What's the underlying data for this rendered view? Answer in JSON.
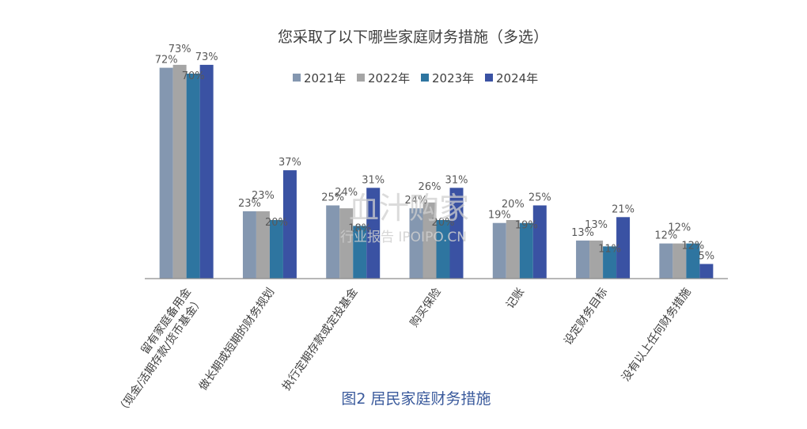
{
  "chart_data": {
    "type": "bar",
    "title": "您采取了以下哪些家庭财务措施（多选）",
    "categories": [
      [
        "留有家庭备用金",
        "（现金/活期存款/货币基金）"
      ],
      [
        "做长期或短期的财务规划"
      ],
      [
        "执行定期存款或定投基金"
      ],
      [
        "购买保险"
      ],
      [
        "记账"
      ],
      [
        "设定财务目标"
      ],
      [
        "没有以上任何财务措施"
      ]
    ],
    "series": [
      {
        "name": "2021年",
        "color": "#8497b0",
        "values": [
          72,
          23,
          25,
          24,
          19,
          13,
          12
        ]
      },
      {
        "name": "2022年",
        "color": "#a5a5a5",
        "values": [
          73,
          23,
          24,
          26,
          20,
          13,
          12
        ]
      },
      {
        "name": "2023年",
        "color": "#2e75a0",
        "values": [
          70,
          20,
          18,
          20,
          19,
          11,
          12
        ]
      },
      {
        "name": "2024年",
        "color": "#3a52a3",
        "values": [
          73,
          37,
          31,
          31,
          25,
          21,
          5
        ]
      }
    ],
    "value_suffix": "%",
    "ylim": [
      0,
      80
    ],
    "legend_position": "top-center",
    "grid": false
  },
  "caption": "图2 居民家庭财务措施",
  "watermark": {
    "brand": "血汁购家",
    "sub": "行业报告 IPOIPO.CN"
  }
}
